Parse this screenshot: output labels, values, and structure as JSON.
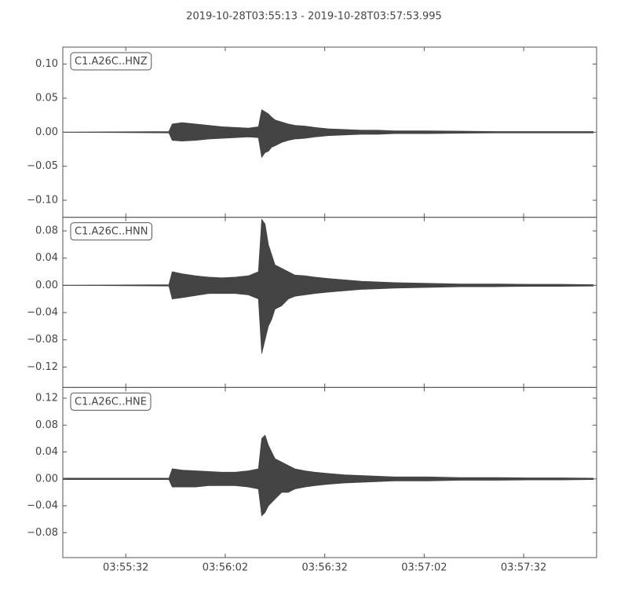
{
  "title": "2019-10-28T03:55:13  -  2019-10-28T03:57:53.995",
  "chart_data": [
    {
      "type": "waveform",
      "label": "C1.A26C..HNZ",
      "color": "#444444",
      "x": [
        "03:55:13",
        "03:55:45",
        "03:55:46",
        "03:55:49",
        "03:55:53",
        "03:55:57",
        "03:56:01",
        "03:56:05",
        "03:56:09",
        "03:56:12",
        "03:56:13",
        "03:56:14",
        "03:56:15",
        "03:56:16",
        "03:56:17",
        "03:56:19",
        "03:56:21",
        "03:56:23",
        "03:56:26",
        "03:56:29",
        "03:56:33",
        "03:56:38",
        "03:56:43",
        "03:56:48",
        "03:56:53",
        "03:57:03",
        "03:57:13",
        "03:57:23",
        "03:57:33",
        "03:57:43",
        "03:57:53"
      ],
      "series": [
        {
          "values": [
            0,
            0.001,
            0.012,
            0.014,
            0.012,
            0.01,
            0.008,
            0.007,
            0.006,
            0.008,
            0.033,
            0.03,
            0.027,
            0.022,
            0.018,
            0.015,
            0.012,
            0.01,
            0.009,
            0.007,
            0.005,
            0.004,
            0.003,
            0.003,
            0.002,
            0.002,
            0.0015,
            0.001,
            0.001,
            0.001,
            0.001
          ]
        },
        {
          "values": [
            0,
            -0.001,
            -0.012,
            -0.013,
            -0.012,
            -0.01,
            -0.009,
            -0.008,
            -0.007,
            -0.008,
            -0.037,
            -0.03,
            -0.028,
            -0.022,
            -0.02,
            -0.015,
            -0.012,
            -0.01,
            -0.009,
            -0.007,
            -0.005,
            -0.004,
            -0.003,
            -0.003,
            -0.002,
            -0.002,
            -0.0015,
            -0.001,
            -0.001,
            -0.001,
            -0.001
          ]
        }
      ],
      "xlim": [
        "03:55:13",
        "03:57:53.995"
      ],
      "ylim": [
        -0.125,
        0.125
      ],
      "yticks": [
        {
          "value": 0.1,
          "label": "0.10"
        },
        0.05,
        {
          "value": 0,
          "label": "0.00"
        },
        {
          "value": -0.05,
          "label": "−0.05"
        },
        {
          "value": -0.1,
          "label": "−0.10"
        }
      ]
    },
    {
      "type": "waveform",
      "label": "C1.A26C..HNN",
      "color": "#444444",
      "x": [
        "03:55:13",
        "03:55:45",
        "03:55:46",
        "03:55:49",
        "03:55:53",
        "03:55:57",
        "03:56:01",
        "03:56:05",
        "03:56:09",
        "03:56:12",
        "03:56:13",
        "03:56:14",
        "03:56:15",
        "03:56:16",
        "03:56:17",
        "03:56:19",
        "03:56:21",
        "03:56:23",
        "03:56:26",
        "03:56:29",
        "03:56:33",
        "03:56:38",
        "03:56:43",
        "03:56:48",
        "03:56:53",
        "03:57:03",
        "03:57:13",
        "03:57:23",
        "03:57:33",
        "03:57:43",
        "03:57:53"
      ],
      "series": [
        {
          "values": [
            0,
            0.001,
            0.02,
            0.017,
            0.014,
            0.012,
            0.011,
            0.012,
            0.014,
            0.02,
            0.097,
            0.09,
            0.06,
            0.045,
            0.03,
            0.025,
            0.02,
            0.015,
            0.014,
            0.012,
            0.01,
            0.008,
            0.006,
            0.005,
            0.004,
            0.003,
            0.002,
            0.002,
            0.0015,
            0.0015,
            0.001
          ]
        },
        {
          "values": [
            0,
            -0.001,
            -0.02,
            -0.018,
            -0.015,
            -0.012,
            -0.012,
            -0.012,
            -0.014,
            -0.02,
            -0.1,
            -0.08,
            -0.06,
            -0.05,
            -0.035,
            -0.03,
            -0.02,
            -0.016,
            -0.014,
            -0.012,
            -0.01,
            -0.008,
            -0.006,
            -0.005,
            -0.004,
            -0.003,
            -0.002,
            -0.002,
            -0.0015,
            -0.0015,
            -0.001
          ]
        }
      ],
      "xlim": [
        "03:55:13",
        "03:57:53.995"
      ],
      "ylim": [
        -0.15,
        0.1
      ],
      "yticks": [
        0.08,
        0.04,
        {
          "value": 0,
          "label": "0.00"
        },
        {
          "value": -0.04,
          "label": "−0.04"
        },
        {
          "value": -0.08,
          "label": "−0.08"
        },
        {
          "value": -0.12,
          "label": "−0.12"
        }
      ]
    },
    {
      "type": "waveform",
      "label": "C1.A26C..HNE",
      "color": "#444444",
      "x": [
        "03:55:13",
        "03:55:45",
        "03:55:46",
        "03:55:49",
        "03:55:53",
        "03:55:57",
        "03:56:01",
        "03:56:05",
        "03:56:09",
        "03:56:12",
        "03:56:13",
        "03:56:14",
        "03:56:15",
        "03:56:16",
        "03:56:17",
        "03:56:19",
        "03:56:21",
        "03:56:23",
        "03:56:26",
        "03:56:29",
        "03:56:33",
        "03:56:38",
        "03:56:43",
        "03:56:48",
        "03:56:53",
        "03:57:03",
        "03:57:13",
        "03:57:23",
        "03:57:33",
        "03:57:43",
        "03:57:53"
      ],
      "series": [
        {
          "values": [
            0.001,
            0.001,
            0.015,
            0.013,
            0.012,
            0.011,
            0.01,
            0.01,
            0.012,
            0.015,
            0.06,
            0.065,
            0.05,
            0.04,
            0.03,
            0.025,
            0.02,
            0.015,
            0.012,
            0.01,
            0.008,
            0.006,
            0.005,
            0.004,
            0.003,
            0.003,
            0.002,
            0.002,
            0.0015,
            0.0015,
            0.001
          ]
        },
        {
          "values": [
            -0.001,
            -0.001,
            -0.012,
            -0.012,
            -0.012,
            -0.01,
            -0.01,
            -0.01,
            -0.012,
            -0.015,
            -0.055,
            -0.05,
            -0.04,
            -0.035,
            -0.03,
            -0.02,
            -0.02,
            -0.015,
            -0.012,
            -0.01,
            -0.008,
            -0.006,
            -0.005,
            -0.004,
            -0.003,
            -0.003,
            -0.002,
            -0.002,
            -0.0015,
            -0.0015,
            -0.001
          ]
        }
      ],
      "xlim": [
        "03:55:13",
        "03:57:53.995"
      ],
      "ylim": [
        -0.117,
        0.136
      ],
      "xticks": [
        "03:55:32",
        "03:56:02",
        "03:56:32",
        "03:57:02",
        "03:57:32"
      ],
      "yticks": [
        0.12,
        0.08,
        0.04,
        {
          "value": 0,
          "label": "0.00"
        },
        {
          "value": -0.04,
          "label": "−0.04"
        },
        {
          "value": -0.08,
          "label": "−0.08"
        }
      ]
    }
  ]
}
